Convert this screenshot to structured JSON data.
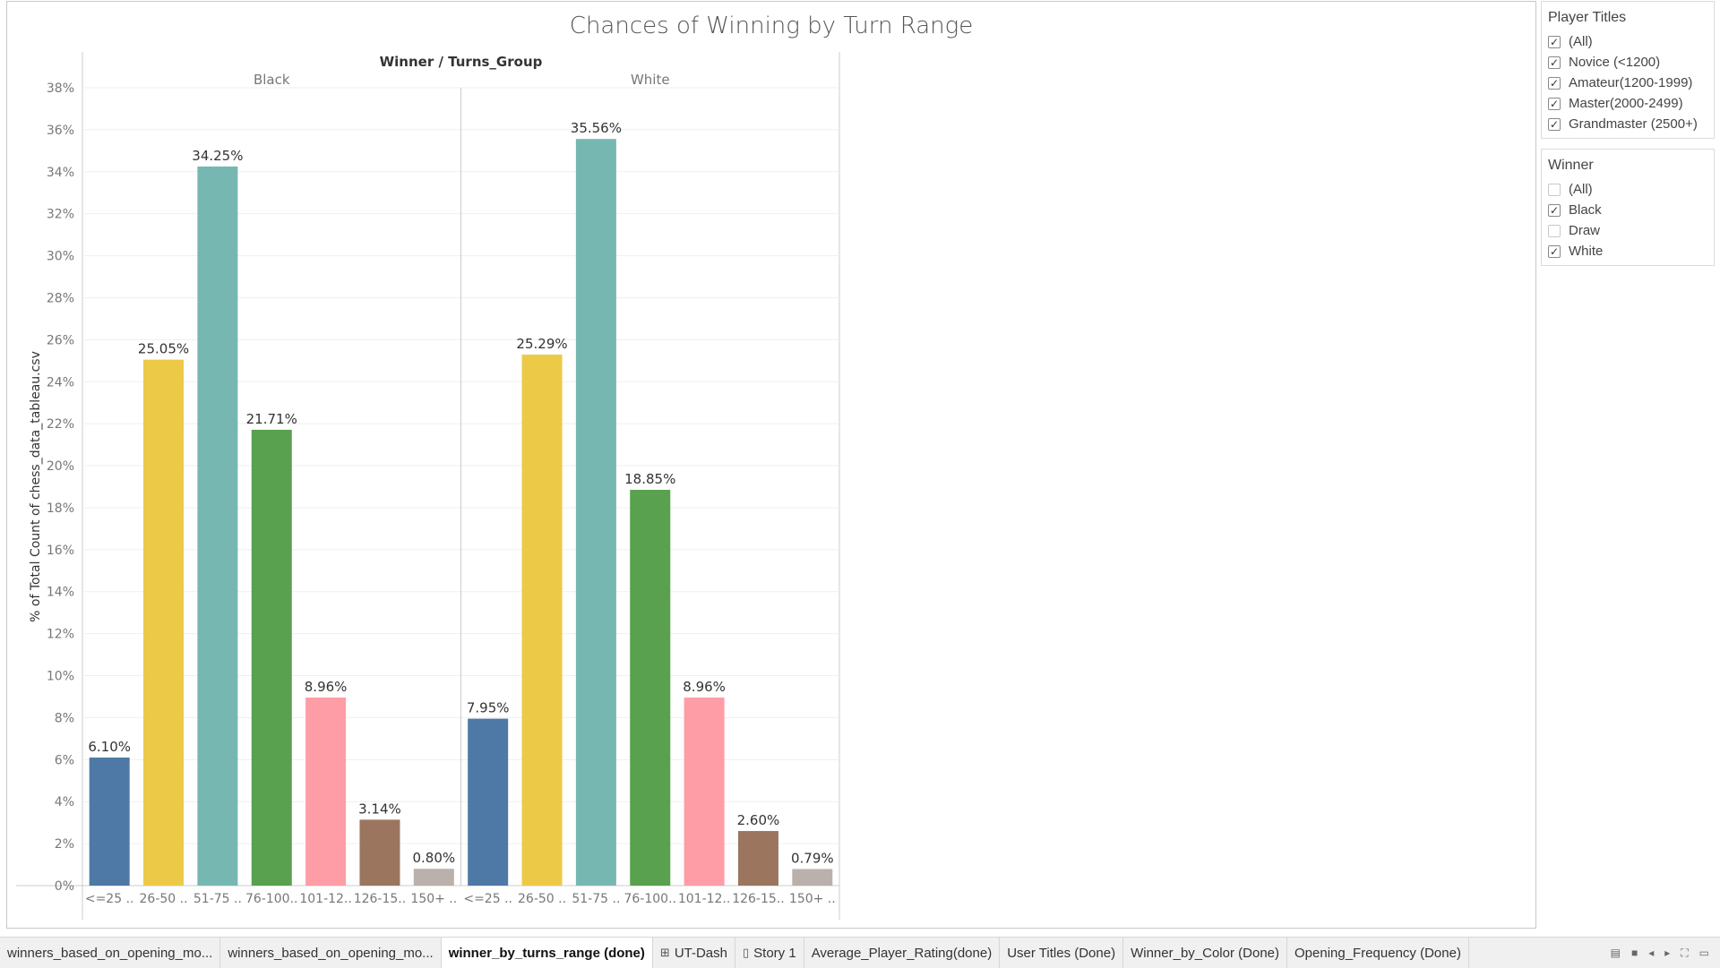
{
  "title": "Chances of Winning by Turn Range",
  "chart_data": {
    "type": "bar",
    "title": "Chances of Winning by Turn Range",
    "header": "Winner / Turns_Group",
    "ylabel": "% of Total Count of chess_data_tableau.csv",
    "ylim": [
      0,
      38
    ],
    "yticks": [
      "0%",
      "2%",
      "4%",
      "6%",
      "8%",
      "10%",
      "12%",
      "14%",
      "16%",
      "18%",
      "20%",
      "22%",
      "24%",
      "26%",
      "28%",
      "30%",
      "32%",
      "34%",
      "36%",
      "38%"
    ],
    "grid": true,
    "categories": [
      "<=25 ..",
      "26-50 ..",
      "51-75 ..",
      "76-100..",
      "101-12..",
      "126-15..",
      "150+ .."
    ],
    "colors": [
      "#4e79a7",
      "#edc948",
      "#76b7b2",
      "#59a14f",
      "#ff9da7",
      "#9c755f",
      "#bab0ac"
    ],
    "panels": [
      {
        "name": "Black",
        "values": [
          6.1,
          25.05,
          34.25,
          21.71,
          8.96,
          3.14,
          0.8
        ],
        "labels": [
          "6.10%",
          "25.05%",
          "34.25%",
          "21.71%",
          "8.96%",
          "3.14%",
          "0.80%"
        ]
      },
      {
        "name": "White",
        "values": [
          7.95,
          25.29,
          35.56,
          18.85,
          8.96,
          2.6,
          0.79
        ],
        "labels": [
          "7.95%",
          "25.29%",
          "35.56%",
          "18.85%",
          "8.96%",
          "2.60%",
          "0.79%"
        ]
      }
    ]
  },
  "filters": {
    "player_titles": {
      "title": "Player Titles",
      "options": [
        {
          "label": "(All)",
          "checked": true,
          "mark": "✓"
        },
        {
          "label": "Novice (<1200)",
          "checked": true,
          "mark": "✓"
        },
        {
          "label": "Amateur(1200-1999)",
          "checked": true,
          "mark": "✓"
        },
        {
          "label": "Master(2000-2499)",
          "checked": true,
          "mark": "✓"
        },
        {
          "label": "Grandmaster (2500+)",
          "checked": true,
          "mark": "✓"
        }
      ]
    },
    "winner": {
      "title": "Winner",
      "options": [
        {
          "label": "(All)",
          "checked": false,
          "mark": ""
        },
        {
          "label": "Black",
          "checked": true,
          "mark": "✓"
        },
        {
          "label": "Draw",
          "checked": false,
          "mark": ""
        },
        {
          "label": "White",
          "checked": true,
          "mark": "✓"
        }
      ]
    }
  },
  "tabs": [
    {
      "label": "winners_based_on_opening_mo...",
      "icon": "",
      "active": false
    },
    {
      "label": "winners_based_on_opening_mo...",
      "icon": "",
      "active": false
    },
    {
      "label": "winner_by_turns_range (done)",
      "icon": "",
      "active": true
    },
    {
      "label": "UT-Dash",
      "icon": "⊞",
      "active": false
    },
    {
      "label": "Story 1",
      "icon": "▯",
      "active": false
    },
    {
      "label": "Average_Player_Rating(done)",
      "icon": "",
      "active": false
    },
    {
      "label": "User Titles (Done)",
      "icon": "",
      "active": false
    },
    {
      "label": "Winner_by_Color (Done)",
      "icon": "",
      "active": false
    },
    {
      "label": "Opening_Frequency (Done)",
      "icon": "",
      "active": false
    }
  ],
  "nav_icons": [
    "show-sheets-icon",
    "filmstrip-icon",
    "prev-sheet-icon",
    "next-sheet-icon",
    "fullscreen-icon",
    "present-icon"
  ]
}
